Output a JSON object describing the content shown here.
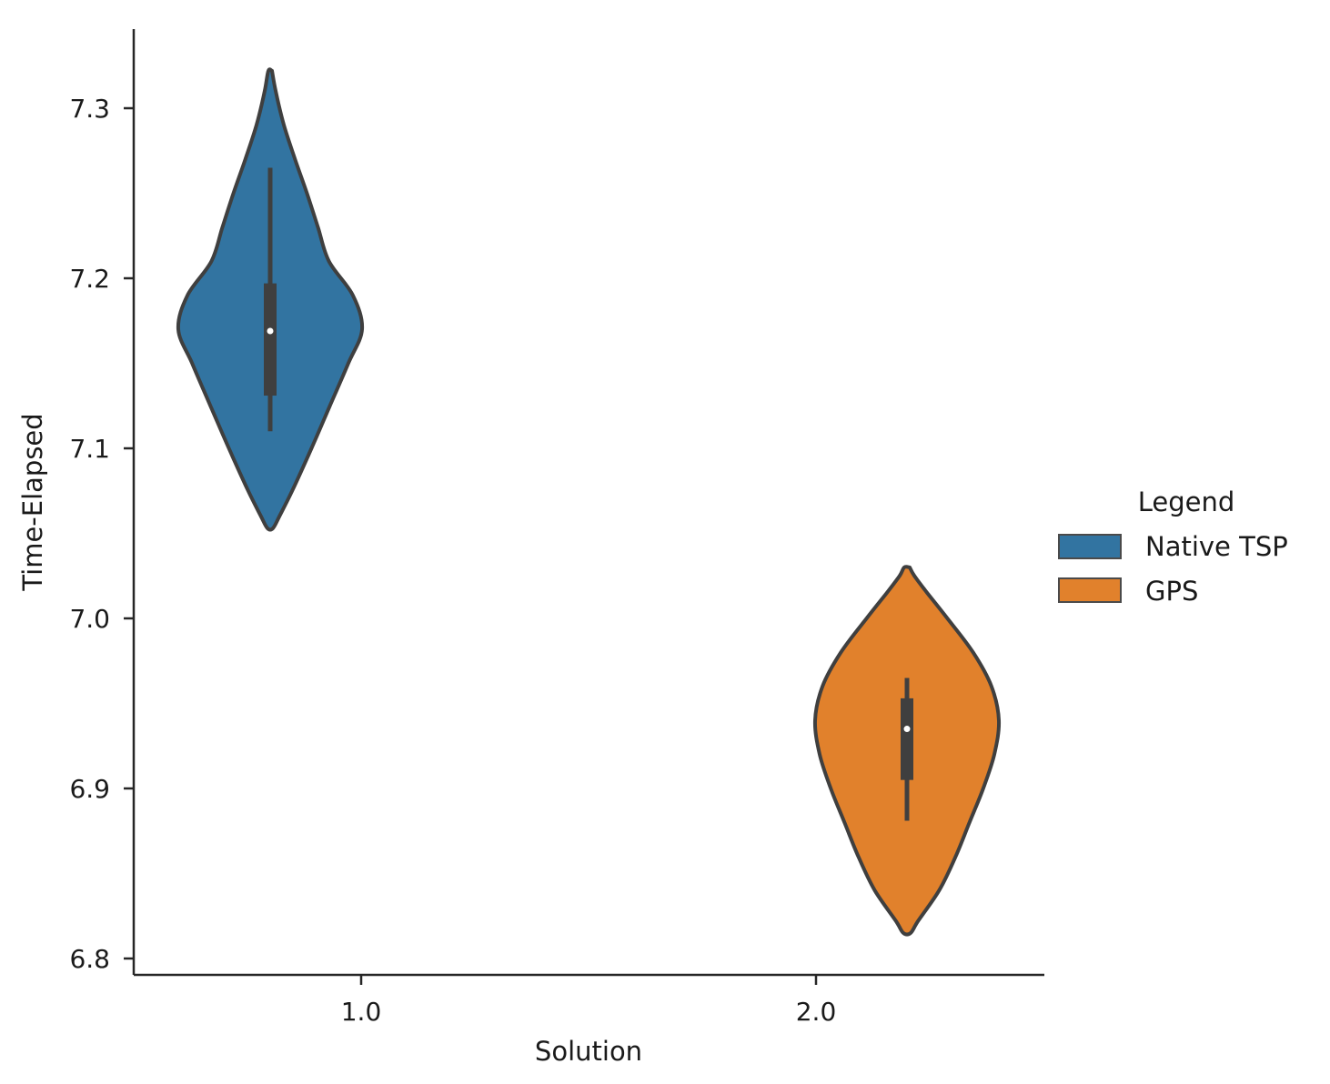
{
  "chart_data": {
    "type": "violin",
    "title": "",
    "xlabel": "Solution",
    "ylabel": "Time-Elapsed",
    "categories": [
      "1.0",
      "2.0"
    ],
    "ylim": [
      6.79,
      7.345
    ],
    "yticks": [
      6.8,
      6.9,
      7.0,
      7.1,
      7.2,
      7.3
    ],
    "ytick_labels": [
      "6.8",
      "6.9",
      "7.0",
      "7.1",
      "7.2",
      "7.3"
    ],
    "legend": {
      "title": "Legend",
      "position": "right",
      "entries": [
        {
          "label": "Native TSP",
          "color": "#3274a1"
        },
        {
          "label": "GPS",
          "color": "#e1812c"
        }
      ]
    },
    "series": [
      {
        "name": "Native TSP",
        "category": "1.0",
        "color": "#3274a1",
        "min": 7.053,
        "max": 7.322,
        "whisker_low": 7.11,
        "whisker_high": 7.265,
        "q1": 7.131,
        "median": 7.169,
        "q3": 7.197,
        "density": [
          [
            7.053,
            0.03
          ],
          [
            7.06,
            0.1
          ],
          [
            7.075,
            0.24
          ],
          [
            7.1,
            0.45
          ],
          [
            7.125,
            0.65
          ],
          [
            7.15,
            0.85
          ],
          [
            7.17,
            1.0
          ],
          [
            7.19,
            0.9
          ],
          [
            7.21,
            0.64
          ],
          [
            7.23,
            0.52
          ],
          [
            7.25,
            0.4
          ],
          [
            7.27,
            0.27
          ],
          [
            7.29,
            0.15
          ],
          [
            7.31,
            0.06
          ],
          [
            7.322,
            0.02
          ]
        ]
      },
      {
        "name": "GPS",
        "category": "2.0",
        "color": "#e1812c",
        "min": 6.815,
        "max": 7.03,
        "whisker_low": 6.881,
        "whisker_high": 6.965,
        "q1": 6.905,
        "median": 6.935,
        "q3": 6.953,
        "density": [
          [
            6.815,
            0.04
          ],
          [
            6.822,
            0.12
          ],
          [
            6.84,
            0.35
          ],
          [
            6.86,
            0.53
          ],
          [
            6.88,
            0.68
          ],
          [
            6.9,
            0.83
          ],
          [
            6.92,
            0.95
          ],
          [
            6.94,
            1.0
          ],
          [
            6.96,
            0.92
          ],
          [
            6.98,
            0.72
          ],
          [
            7.0,
            0.44
          ],
          [
            7.015,
            0.22
          ],
          [
            7.025,
            0.08
          ],
          [
            7.03,
            0.03
          ]
        ]
      }
    ]
  }
}
